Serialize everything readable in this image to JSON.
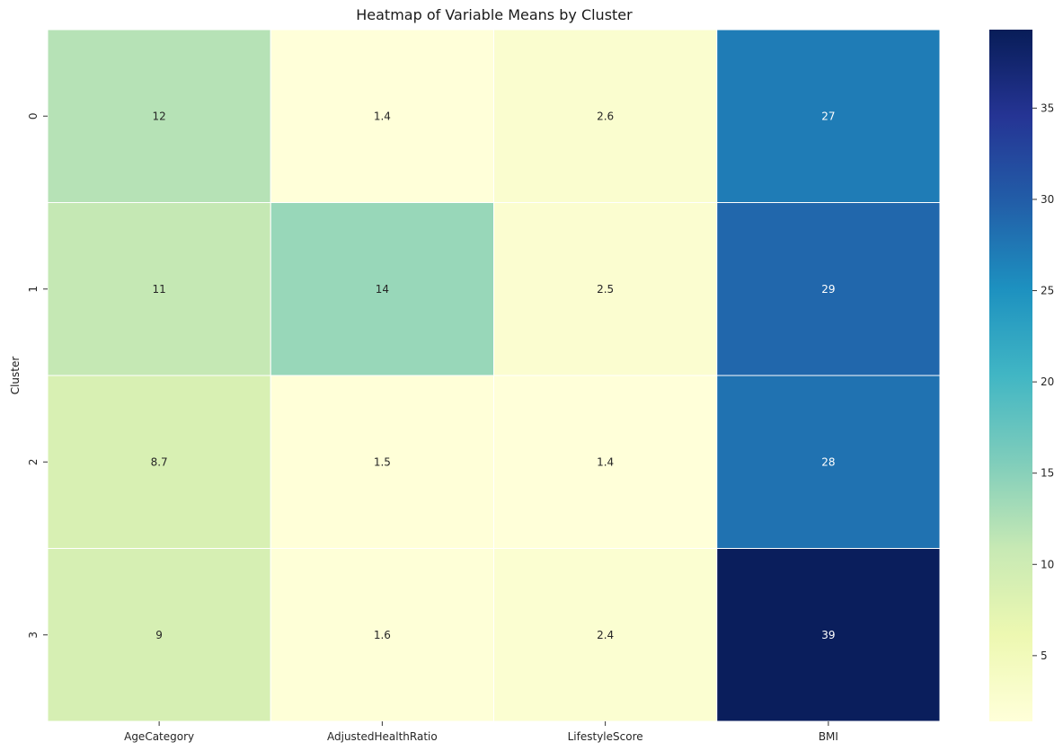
{
  "chart_data": {
    "type": "heatmap",
    "title": "Heatmap of Variable Means by Cluster",
    "xlabel": "",
    "ylabel": "Cluster",
    "columns": [
      "AgeCategory",
      "AdjustedHealthRatio",
      "LifestyleScore",
      "BMI"
    ],
    "rows": [
      "0",
      "1",
      "2",
      "3"
    ],
    "values": [
      [
        12,
        1.4,
        2.6,
        27
      ],
      [
        11,
        14,
        2.5,
        29
      ],
      [
        8.7,
        1.5,
        1.4,
        28
      ],
      [
        9,
        1.6,
        2.4,
        39
      ]
    ],
    "value_labels": [
      [
        "12",
        "1.4",
        "2.6",
        "27"
      ],
      [
        "11",
        "14",
        "2.5",
        "29"
      ],
      [
        "8.7",
        "1.5",
        "1.4",
        "28"
      ],
      [
        "9",
        "1.6",
        "2.4",
        "39"
      ]
    ],
    "colorbar": {
      "colormap": "YlGnBu",
      "range": [
        1.4,
        39.3
      ],
      "ticks": [
        5,
        10,
        15,
        20,
        25,
        30,
        35
      ]
    },
    "grid": false,
    "cell_separator_color": "#ffffff"
  }
}
